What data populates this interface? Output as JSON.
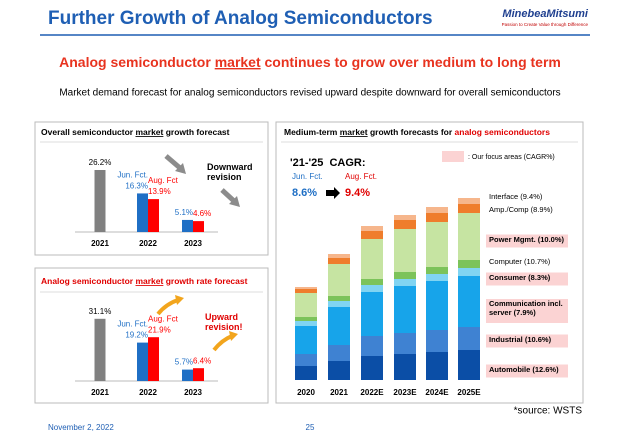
{
  "header": {
    "title": "Further Growth of Analog Semiconductors",
    "logo": "MinebeaMitsumi",
    "tagline": "Passion to Create Value through Difference"
  },
  "headline": [
    "Analog semiconductor ",
    "market",
    " continues to grow over medium to long term"
  ],
  "subtitle": "Market demand forecast for analog semiconductors revised upward despite downward for overall semiconductors",
  "chart_data": [
    {
      "type": "bar",
      "title": [
        "Overall semiconductor ",
        "market",
        " growth forecast"
      ],
      "categories": [
        "2021",
        "2022",
        "2023"
      ],
      "ylim": [
        0,
        30
      ],
      "series": [
        {
          "color": "#808080",
          "values": [
            26.2,
            null,
            null
          ],
          "value_labels": [
            "26.2%",
            null,
            null
          ]
        },
        {
          "name": "Jun. Fct.",
          "color": "#1f6fc5",
          "values": [
            null,
            16.3,
            5.1
          ],
          "value_labels": [
            null,
            "16.3%",
            "5.1%"
          ]
        },
        {
          "name": "Aug. Fct",
          "color": "#ff0000",
          "values": [
            null,
            13.9,
            4.6
          ],
          "value_labels": [
            null,
            "13.9%",
            "4.6%"
          ]
        }
      ],
      "annotation": "Downward revision"
    },
    {
      "type": "bar",
      "title": [
        "Analog semiconductor ",
        "market",
        " growth rate forecast"
      ],
      "categories": [
        "2021",
        "2022",
        "2023"
      ],
      "ylim": [
        0,
        35
      ],
      "series": [
        {
          "color": "#808080",
          "values": [
            31.1,
            null,
            null
          ],
          "value_labels": [
            "31.1%",
            null,
            null
          ]
        },
        {
          "name": "Jun. Fct.",
          "color": "#1f6fc5",
          "values": [
            null,
            19.2,
            5.7
          ],
          "value_labels": [
            null,
            "19.2%",
            "5.7%"
          ]
        },
        {
          "name": "Aug. Fct",
          "color": "#ff0000",
          "values": [
            null,
            21.9,
            6.4
          ],
          "value_labels": [
            null,
            "21.9%",
            "6.4%"
          ]
        }
      ],
      "annotation": "Upward revision!"
    },
    {
      "type": "stacked_bar",
      "title": [
        "Medium-term ",
        "market",
        " growth forecasts for ",
        "analog semiconductors"
      ],
      "categories": [
        "2020",
        "2021",
        "2022E",
        "2023E",
        "2024E",
        "2025E"
      ],
      "ylim": [
        0,
        200
      ],
      "focus_legend": ": Our focus areas (CAGR%)",
      "annotations": {
        "period": "'21-'25  CAGR:",
        "from_label": "Jun. Fct.",
        "to_label": "Aug. Fct.",
        "from": {
          "value": 8.6,
          "label": "8.6%"
        },
        "to": {
          "value": 9.4,
          "label": "9.4%"
        }
      },
      "series": [
        {
          "name": "Automobile (12.6%)",
          "color": "#0b4ea6",
          "highlight": true,
          "values": [
            14,
            19,
            24,
            26,
            28,
            30
          ]
        },
        {
          "name": "Industrial (10.6%)",
          "color": "#3f82d2",
          "highlight": true,
          "values": [
            12,
            16,
            20,
            21,
            22,
            23
          ]
        },
        {
          "name": "Communication incl. server (7.9%)",
          "color": "#17a4ea",
          "highlight": true,
          "values": [
            28,
            38,
            44,
            47,
            49,
            51
          ]
        },
        {
          "name": "Consumer (8.3%)",
          "color": "#80d4f2",
          "highlight": true,
          "values": [
            5,
            6,
            7,
            7,
            7,
            8
          ]
        },
        {
          "name": "Computer (10.7%)",
          "color": "#7cc35a",
          "highlight": false,
          "values": [
            4,
            5,
            6,
            7,
            7,
            8
          ]
        },
        {
          "name": "Power Mgmt. (10.0%)",
          "color": "#c6e4a2",
          "highlight": true,
          "values": [
            24,
            32,
            40,
            43,
            45,
            47
          ]
        },
        {
          "name": "Amp./Comp (8.9%)",
          "color": "#ef7d2c",
          "highlight": false,
          "values": [
            4,
            6,
            8,
            9,
            9,
            9
          ]
        },
        {
          "name": "Interface (9.4%)",
          "color": "#f6b68c",
          "highlight": false,
          "values": [
            2,
            4,
            5,
            5,
            6,
            6
          ]
        }
      ]
    }
  ],
  "footer": {
    "date": "November 2, 2022",
    "page": "25",
    "source": "*source: WSTS"
  }
}
